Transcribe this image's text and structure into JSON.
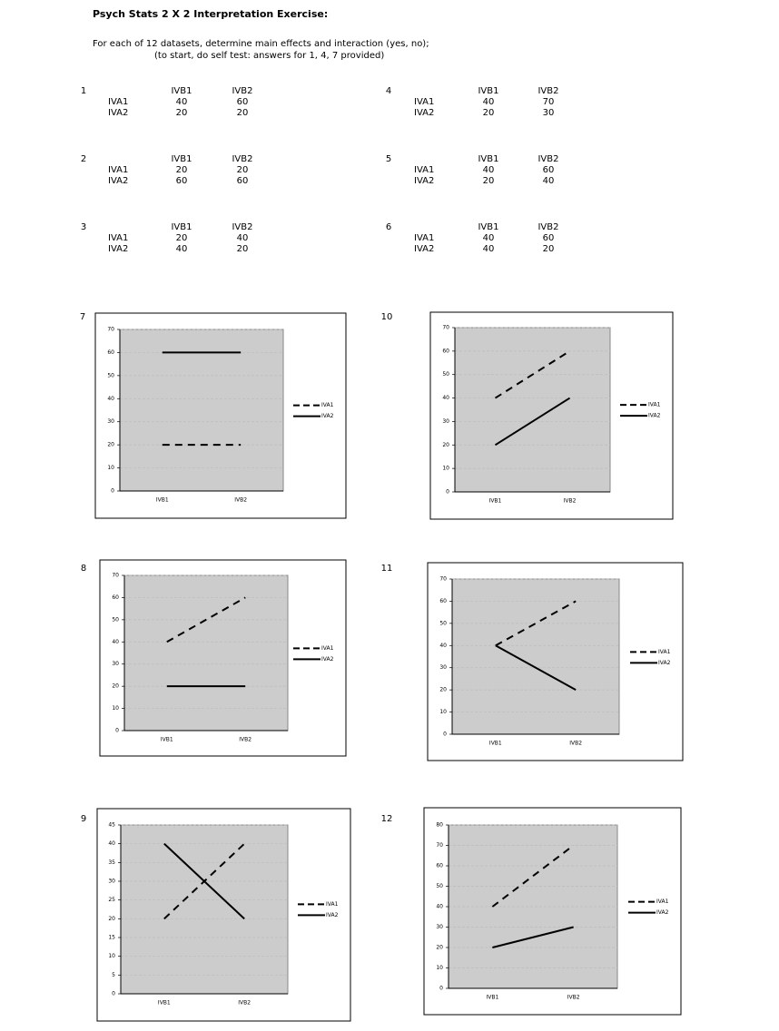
{
  "header": {
    "title": "Psych Stats 2 X 2 Interpretation Exercise:",
    "lines": [
      "For each of 12 datasets, determine main effects and interaction (yes, no);",
      "(to start, do self test: answers for 1, 4, 7 provided)"
    ]
  },
  "tables": [
    {
      "number": 1,
      "columns": [
        "IVB1",
        "IVB2"
      ],
      "rows": [
        {
          "label": "IVA1",
          "values": [
            40,
            60
          ]
        },
        {
          "label": "IVA2",
          "values": [
            20,
            20
          ]
        }
      ]
    },
    {
      "number": 2,
      "columns": [
        "IVB1",
        "IVB2"
      ],
      "rows": [
        {
          "label": "IVA1",
          "values": [
            20,
            20
          ]
        },
        {
          "label": "IVA2",
          "values": [
            60,
            60
          ]
        }
      ]
    },
    {
      "number": 3,
      "columns": [
        "IVB1",
        "IVB2"
      ],
      "rows": [
        {
          "label": "IVA1",
          "values": [
            20,
            40
          ]
        },
        {
          "label": "IVA2",
          "values": [
            40,
            20
          ]
        }
      ]
    },
    {
      "number": 4,
      "columns": [
        "IVB1",
        "IVB2"
      ],
      "rows": [
        {
          "label": "IVA1",
          "values": [
            40,
            70
          ]
        },
        {
          "label": "IVA2",
          "values": [
            20,
            30
          ]
        }
      ]
    },
    {
      "number": 5,
      "columns": [
        "IVB1",
        "IVB2"
      ],
      "rows": [
        {
          "label": "IVA1",
          "values": [
            40,
            60
          ]
        },
        {
          "label": "IVA2",
          "values": [
            20,
            40
          ]
        }
      ]
    },
    {
      "number": 6,
      "columns": [
        "IVB1",
        "IVB2"
      ],
      "rows": [
        {
          "label": "IVA1",
          "values": [
            40,
            60
          ]
        },
        {
          "label": "IVA2",
          "values": [
            40,
            20
          ]
        }
      ]
    }
  ],
  "chart_data": [
    {
      "number": 7,
      "type": "line",
      "categories": [
        "IVB1",
        "IVB2"
      ],
      "grid": true,
      "ylim": [
        0,
        70
      ],
      "yticks": [
        0,
        10,
        20,
        30,
        40,
        50,
        60,
        70
      ],
      "legend": "right",
      "series": [
        {
          "name": "IVA1",
          "color": "#000000",
          "style": "dashed",
          "values": [
            20,
            20
          ]
        },
        {
          "name": "IVA2",
          "color": "#000000",
          "style": "solid",
          "values": [
            60,
            60
          ]
        }
      ]
    },
    {
      "number": 8,
      "type": "line",
      "categories": [
        "IVB1",
        "IVB2"
      ],
      "grid": true,
      "ylim": [
        0,
        70
      ],
      "yticks": [
        0,
        10,
        20,
        30,
        40,
        50,
        60,
        70
      ],
      "legend": "right",
      "series": [
        {
          "name": "IVA1",
          "color": "#000000",
          "style": "dashed",
          "values": [
            40,
            60
          ]
        },
        {
          "name": "IVA2",
          "color": "#000000",
          "style": "solid",
          "values": [
            20,
            20
          ]
        }
      ]
    },
    {
      "number": 9,
      "type": "line",
      "categories": [
        "IVB1",
        "IVB2"
      ],
      "grid": true,
      "ylim": [
        0,
        45
      ],
      "yticks": [
        0,
        5,
        10,
        15,
        20,
        25,
        30,
        35,
        40,
        45
      ],
      "legend": "right",
      "series": [
        {
          "name": "IVA1",
          "color": "#000000",
          "style": "dashed",
          "values": [
            20,
            40
          ]
        },
        {
          "name": "IVA2",
          "color": "#000000",
          "style": "solid",
          "values": [
            40,
            20
          ]
        }
      ]
    },
    {
      "number": 10,
      "type": "line",
      "categories": [
        "IVB1",
        "IVB2"
      ],
      "grid": true,
      "ylim": [
        0,
        70
      ],
      "yticks": [
        0,
        10,
        20,
        30,
        40,
        50,
        60,
        70
      ],
      "legend": "right",
      "series": [
        {
          "name": "IVA1",
          "color": "#000000",
          "style": "dashed",
          "values": [
            40,
            60
          ]
        },
        {
          "name": "IVA2",
          "color": "#000000",
          "style": "solid",
          "values": [
            20,
            40
          ]
        }
      ]
    },
    {
      "number": 11,
      "type": "line",
      "categories": [
        "IVB1",
        "IVB2"
      ],
      "grid": true,
      "ylim": [
        0,
        70
      ],
      "yticks": [
        0,
        10,
        20,
        30,
        40,
        50,
        60,
        70
      ],
      "legend": "right",
      "series": [
        {
          "name": "IVA1",
          "color": "#000000",
          "style": "dashed",
          "values": [
            40,
            60
          ]
        },
        {
          "name": "IVA2",
          "color": "#000000",
          "style": "solid",
          "values": [
            40,
            20
          ]
        }
      ]
    },
    {
      "number": 12,
      "type": "line",
      "categories": [
        "IVB1",
        "IVB2"
      ],
      "grid": true,
      "ylim": [
        0,
        80
      ],
      "yticks": [
        0,
        10,
        20,
        30,
        40,
        50,
        60,
        70,
        80
      ],
      "legend": "right",
      "series": [
        {
          "name": "IVA1",
          "color": "#000000",
          "style": "dashed",
          "values": [
            40,
            70
          ]
        },
        {
          "name": "IVA2",
          "color": "#000000",
          "style": "solid",
          "values": [
            20,
            30
          ]
        }
      ]
    }
  ]
}
